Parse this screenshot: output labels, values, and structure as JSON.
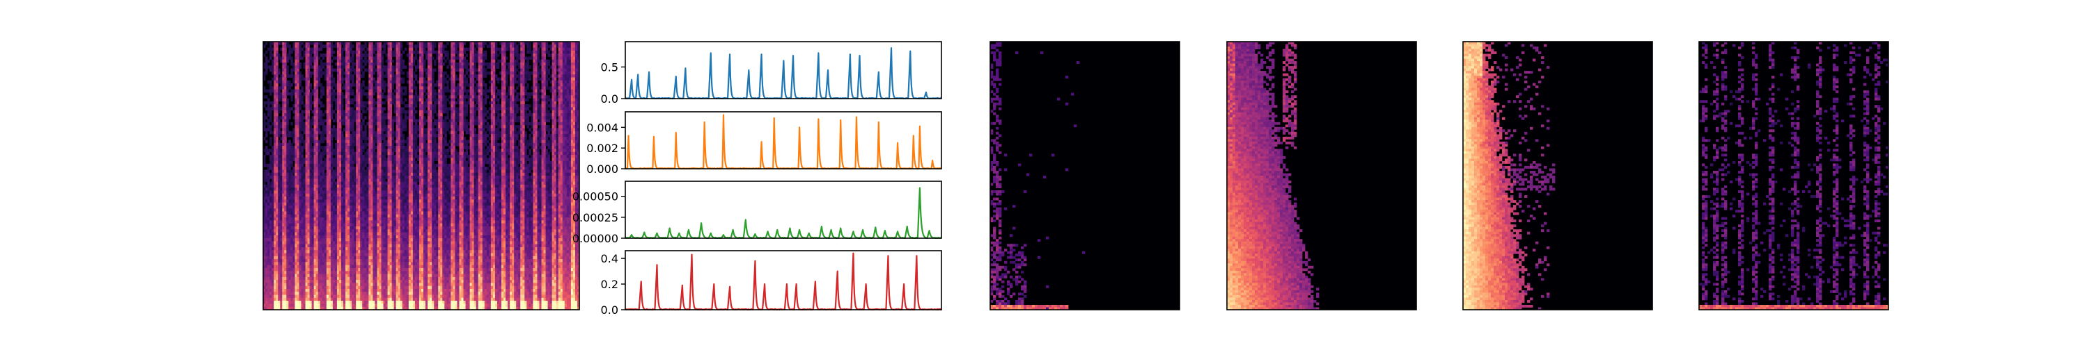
{
  "colors": {
    "background": "#ffffff",
    "axes": "#000000",
    "colormap": "magma",
    "series": [
      "#1f77b4",
      "#ff7f0e",
      "#2ca02c",
      "#d62728"
    ]
  },
  "chart_data": [
    {
      "type": "heatmap",
      "panel": "spectrogram-input",
      "colormap": "magma",
      "description_of_values": "dense vertical onset streaks (about 30) with energy concentrated in the low rows; bright column near the right edge",
      "onsets_fraction": [
        0.03,
        0.06,
        0.1,
        0.13,
        0.16,
        0.2,
        0.23,
        0.26,
        0.29,
        0.33,
        0.36,
        0.39,
        0.42,
        0.46,
        0.49,
        0.52,
        0.55,
        0.59,
        0.62,
        0.65,
        0.68,
        0.72,
        0.75,
        0.78,
        0.81,
        0.85,
        0.88,
        0.91,
        0.93,
        0.97
      ],
      "axis_ticks_visible": false
    },
    {
      "type": "line",
      "panel": "activation-1",
      "color": "#1f77b4",
      "yticks": [
        "0.0",
        "0.5"
      ],
      "ylim": [
        0,
        0.9
      ],
      "peaks": {
        "x": [
          0.02,
          0.04,
          0.075,
          0.16,
          0.19,
          0.27,
          0.33,
          0.39,
          0.43,
          0.5,
          0.53,
          0.61,
          0.64,
          0.71,
          0.74,
          0.8,
          0.84,
          0.9,
          0.95
        ],
        "y": [
          0.3,
          0.38,
          0.42,
          0.35,
          0.48,
          0.72,
          0.7,
          0.45,
          0.7,
          0.6,
          0.68,
          0.72,
          0.45,
          0.7,
          0.68,
          0.42,
          0.8,
          0.75,
          0.1
        ]
      }
    },
    {
      "type": "line",
      "panel": "activation-2",
      "color": "#ff7f0e",
      "yticks": [
        "0.000",
        "0.002",
        "0.004"
      ],
      "ylim": [
        0,
        0.0055
      ],
      "peaks": {
        "x": [
          0.01,
          0.09,
          0.16,
          0.25,
          0.31,
          0.43,
          0.47,
          0.55,
          0.61,
          0.68,
          0.73,
          0.8,
          0.86,
          0.91,
          0.93,
          0.97
        ],
        "y": [
          0.0032,
          0.0031,
          0.0035,
          0.0045,
          0.0052,
          0.0026,
          0.0049,
          0.004,
          0.0048,
          0.0047,
          0.005,
          0.0045,
          0.0025,
          0.0032,
          0.0041,
          0.0008
        ]
      }
    },
    {
      "type": "line",
      "panel": "activation-3",
      "color": "#2ca02c",
      "yticks": [
        "0.00000",
        "0.00025",
        "0.00050"
      ],
      "ylim": [
        0,
        0.00068
      ],
      "peaks": {
        "x": [
          0.02,
          0.06,
          0.1,
          0.14,
          0.17,
          0.2,
          0.24,
          0.27,
          0.31,
          0.34,
          0.38,
          0.41,
          0.45,
          0.48,
          0.52,
          0.55,
          0.58,
          0.62,
          0.65,
          0.68,
          0.72,
          0.75,
          0.79,
          0.82,
          0.86,
          0.89,
          0.93,
          0.96
        ],
        "y": [
          4e-05,
          7e-05,
          6e-05,
          0.00012,
          6e-05,
          0.0001,
          0.00018,
          6e-05,
          4e-05,
          0.0001,
          0.00022,
          5e-05,
          8e-05,
          0.0001,
          0.00012,
          0.0001,
          6e-05,
          0.00014,
          0.0001,
          0.00012,
          8e-05,
          0.0001,
          0.00013,
          9e-05,
          8e-05,
          0.00014,
          0.0006,
          9e-05
        ]
      }
    },
    {
      "type": "line",
      "panel": "activation-4",
      "color": "#d62728",
      "yticks": [
        "0.0",
        "0.2",
        "0.4"
      ],
      "ylim": [
        0,
        0.46
      ],
      "peaks": {
        "x": [
          0.05,
          0.1,
          0.18,
          0.21,
          0.28,
          0.33,
          0.41,
          0.44,
          0.51,
          0.54,
          0.6,
          0.67,
          0.72,
          0.76,
          0.83,
          0.88,
          0.92
        ],
        "y": [
          0.22,
          0.35,
          0.19,
          0.43,
          0.2,
          0.18,
          0.38,
          0.2,
          0.2,
          0.2,
          0.22,
          0.3,
          0.44,
          0.2,
          0.42,
          0.2,
          0.42
        ]
      }
    },
    {
      "type": "heatmap",
      "panel": "template-1",
      "colormap": "magma",
      "description_of_values": "mostly dark; faint purple streak along the left edge and bright band along the bottom row",
      "axis_ticks_visible": false
    },
    {
      "type": "heatmap",
      "panel": "template-2",
      "colormap": "magma",
      "description_of_values": "bright orange-pink energy in the left third, two purple vertical bands near top, dark on the right",
      "axis_ticks_visible": false
    },
    {
      "type": "heatmap",
      "panel": "template-3",
      "colormap": "magma",
      "description_of_values": "bright orange-yellow vertical band at the left, fading to purple toward the middle, dark on the right",
      "axis_ticks_visible": false
    },
    {
      "type": "heatmap",
      "panel": "template-4",
      "colormap": "magma",
      "description_of_values": "sparse faint purple streaks across the full width, thin bright band along the bottom",
      "axis_ticks_visible": false
    }
  ]
}
